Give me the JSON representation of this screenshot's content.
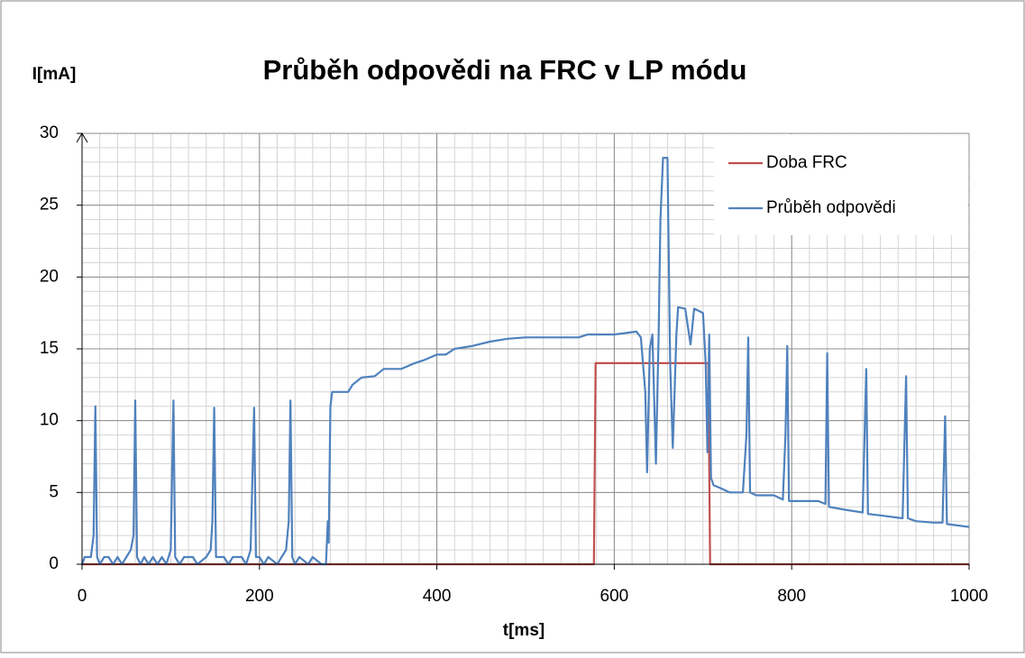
{
  "chart_data": {
    "type": "line",
    "title": "Průběh odpovědi na FRC v LP módu",
    "xlabel": "t[ms]",
    "ylabel": "I[mA]",
    "xlim": [
      0,
      1000
    ],
    "xticks": [
      0,
      200,
      400,
      600,
      800,
      1000
    ],
    "ylim": [
      0,
      30
    ],
    "yticks": [
      0,
      5,
      10,
      15,
      20,
      25,
      30
    ],
    "grid": true,
    "minor_grid": true,
    "legend": "upper right",
    "series": [
      {
        "name": "Doba FRC",
        "color": "#c0504d",
        "x": [
          0,
          577,
          579,
          706,
          708,
          1000
        ],
        "values": [
          0,
          0,
          14,
          14,
          0,
          0
        ]
      },
      {
        "name": "Průběh odpovědi",
        "color": "#4f81bd",
        "x": [
          0,
          3,
          10,
          13,
          15,
          17,
          20,
          25,
          30,
          35,
          40,
          45,
          50,
          55,
          58,
          60,
          62,
          66,
          70,
          75,
          80,
          85,
          90,
          95,
          100,
          103,
          105,
          110,
          115,
          125,
          130,
          140,
          145,
          147,
          149,
          151,
          160,
          165,
          170,
          180,
          185,
          190,
          194,
          196,
          200,
          205,
          210,
          220,
          225,
          230,
          233,
          235,
          237,
          240,
          245,
          255,
          260,
          270,
          275,
          277,
          278,
          280,
          282,
          300,
          305,
          315,
          330,
          340,
          360,
          375,
          385,
          400,
          410,
          420,
          440,
          460,
          480,
          500,
          540,
          560,
          570,
          600,
          625,
          630,
          635,
          637,
          640,
          643,
          647,
          650,
          652,
          655,
          660,
          663,
          666,
          668,
          670,
          672,
          680,
          686,
          690,
          700,
          703,
          705,
          707,
          709,
          712,
          720,
          730,
          745,
          749,
          751,
          753,
          760,
          780,
          790,
          793,
          795,
          797,
          830,
          838,
          840,
          842,
          860,
          880,
          884,
          886,
          900,
          925,
          929,
          931,
          940,
          960,
          970,
          973,
          975,
          1000
        ],
        "values": [
          0,
          0.5,
          0.5,
          2,
          11,
          0.5,
          0,
          0.5,
          0.5,
          0,
          0.5,
          0,
          0.5,
          1,
          2,
          11.4,
          0.5,
          0,
          0.5,
          0,
          0.5,
          0,
          0.5,
          0,
          1,
          11.4,
          0.5,
          0,
          0.5,
          0.5,
          0,
          0.5,
          1,
          3,
          10.9,
          0.5,
          0.5,
          0,
          0.5,
          0.5,
          0,
          1,
          10.9,
          0.5,
          0.5,
          0,
          0.5,
          0,
          0.5,
          1,
          3,
          11.4,
          0.5,
          0,
          0.5,
          0,
          0.5,
          0,
          0,
          3,
          1.5,
          11,
          12,
          12,
          12.5,
          13,
          13.1,
          13.6,
          13.6,
          14,
          14.2,
          14.6,
          14.6,
          15,
          15.2,
          15.5,
          15.7,
          15.8,
          15.8,
          15.8,
          16,
          16,
          16.2,
          15.8,
          12,
          6.4,
          15,
          16,
          7,
          16,
          24,
          28.3,
          28.3,
          14,
          8.1,
          12,
          16,
          17.9,
          17.8,
          15.3,
          17.8,
          17.5,
          14,
          7.8,
          16,
          6,
          5.5,
          5.3,
          5,
          5,
          9,
          15.8,
          5,
          4.8,
          4.8,
          4.5,
          9,
          15.2,
          4.4,
          4.4,
          4.2,
          14.7,
          4,
          3.8,
          3.6,
          13.6,
          3.5,
          3.4,
          3.2,
          13.1,
          3.2,
          3,
          2.9,
          2.9,
          10.3,
          2.8,
          2.6
        ]
      }
    ]
  }
}
